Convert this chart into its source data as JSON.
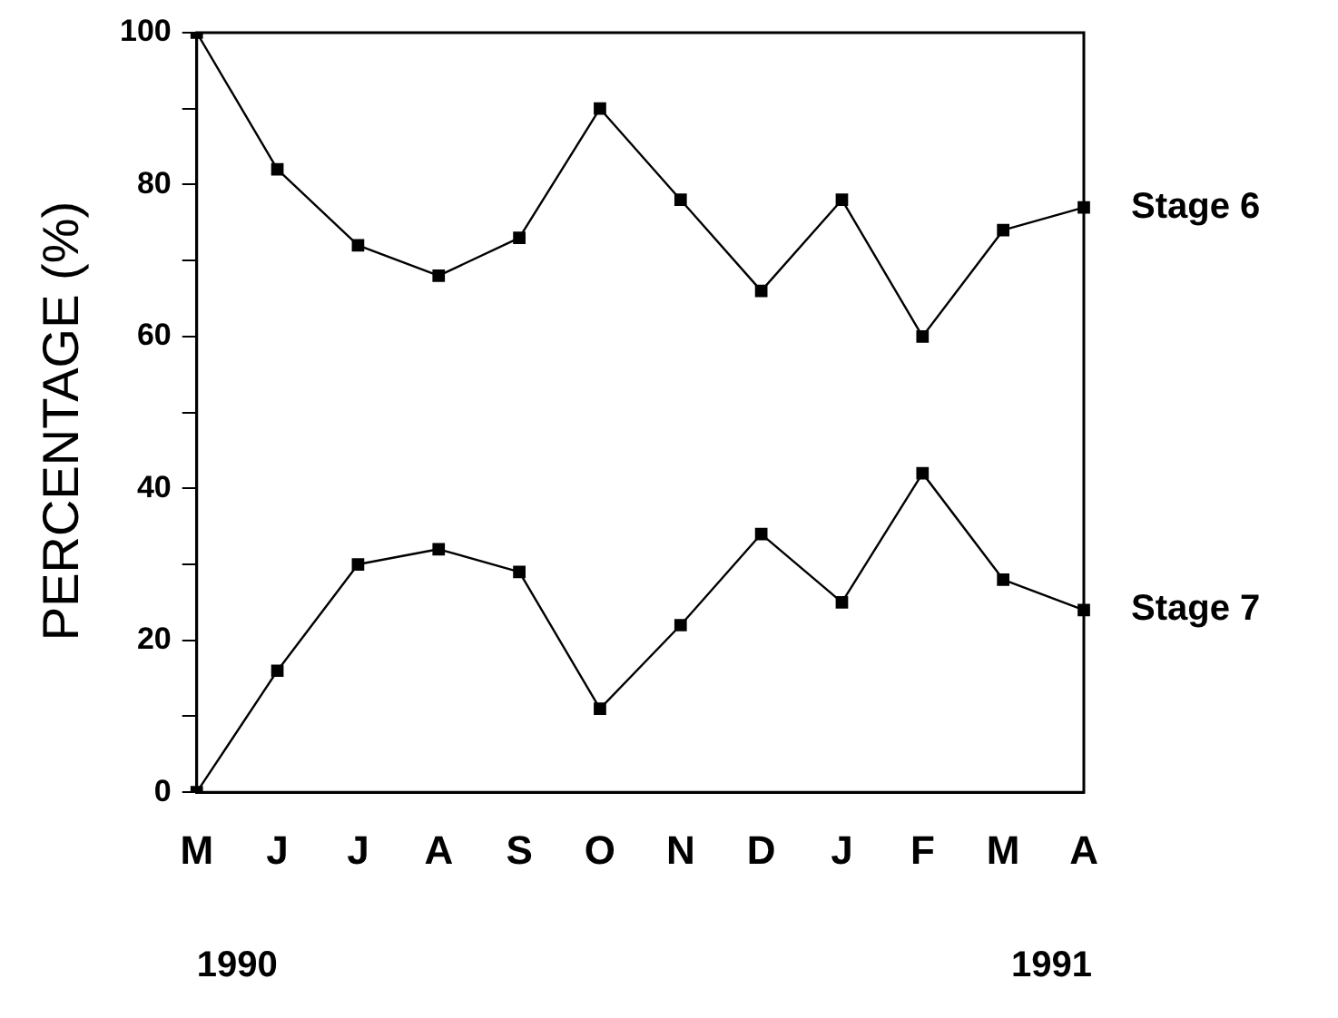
{
  "chart_data": {
    "type": "line",
    "ylabel": "PERCENTAGE (%)",
    "categories": [
      "M",
      "J",
      "J",
      "A",
      "S",
      "O",
      "N",
      "D",
      "J",
      "F",
      "M",
      "A"
    ],
    "series": [
      {
        "name": "Stage 6",
        "color": "#000000",
        "values": [
          100,
          82,
          72,
          68,
          73,
          90,
          78,
          66,
          78,
          60,
          74,
          77
        ]
      },
      {
        "name": "Stage 7",
        "color": "#000000",
        "values": [
          0,
          16,
          30,
          32,
          29,
          11,
          22,
          34,
          25,
          42,
          28,
          24
        ]
      }
    ],
    "ylim": [
      0,
      100
    ],
    "yticks": [
      0,
      {
        "value": 10,
        "label": null
      },
      20,
      {
        "value": 30,
        "label": null
      },
      40,
      {
        "value": 50,
        "label": null
      },
      60,
      {
        "value": 70,
        "label": null
      },
      80,
      {
        "value": 90,
        "label": null
      },
      100
    ],
    "annotations": [
      "1990",
      "1991"
    ],
    "grid": false,
    "legend": false,
    "marker": "square",
    "line_style": "solid"
  }
}
